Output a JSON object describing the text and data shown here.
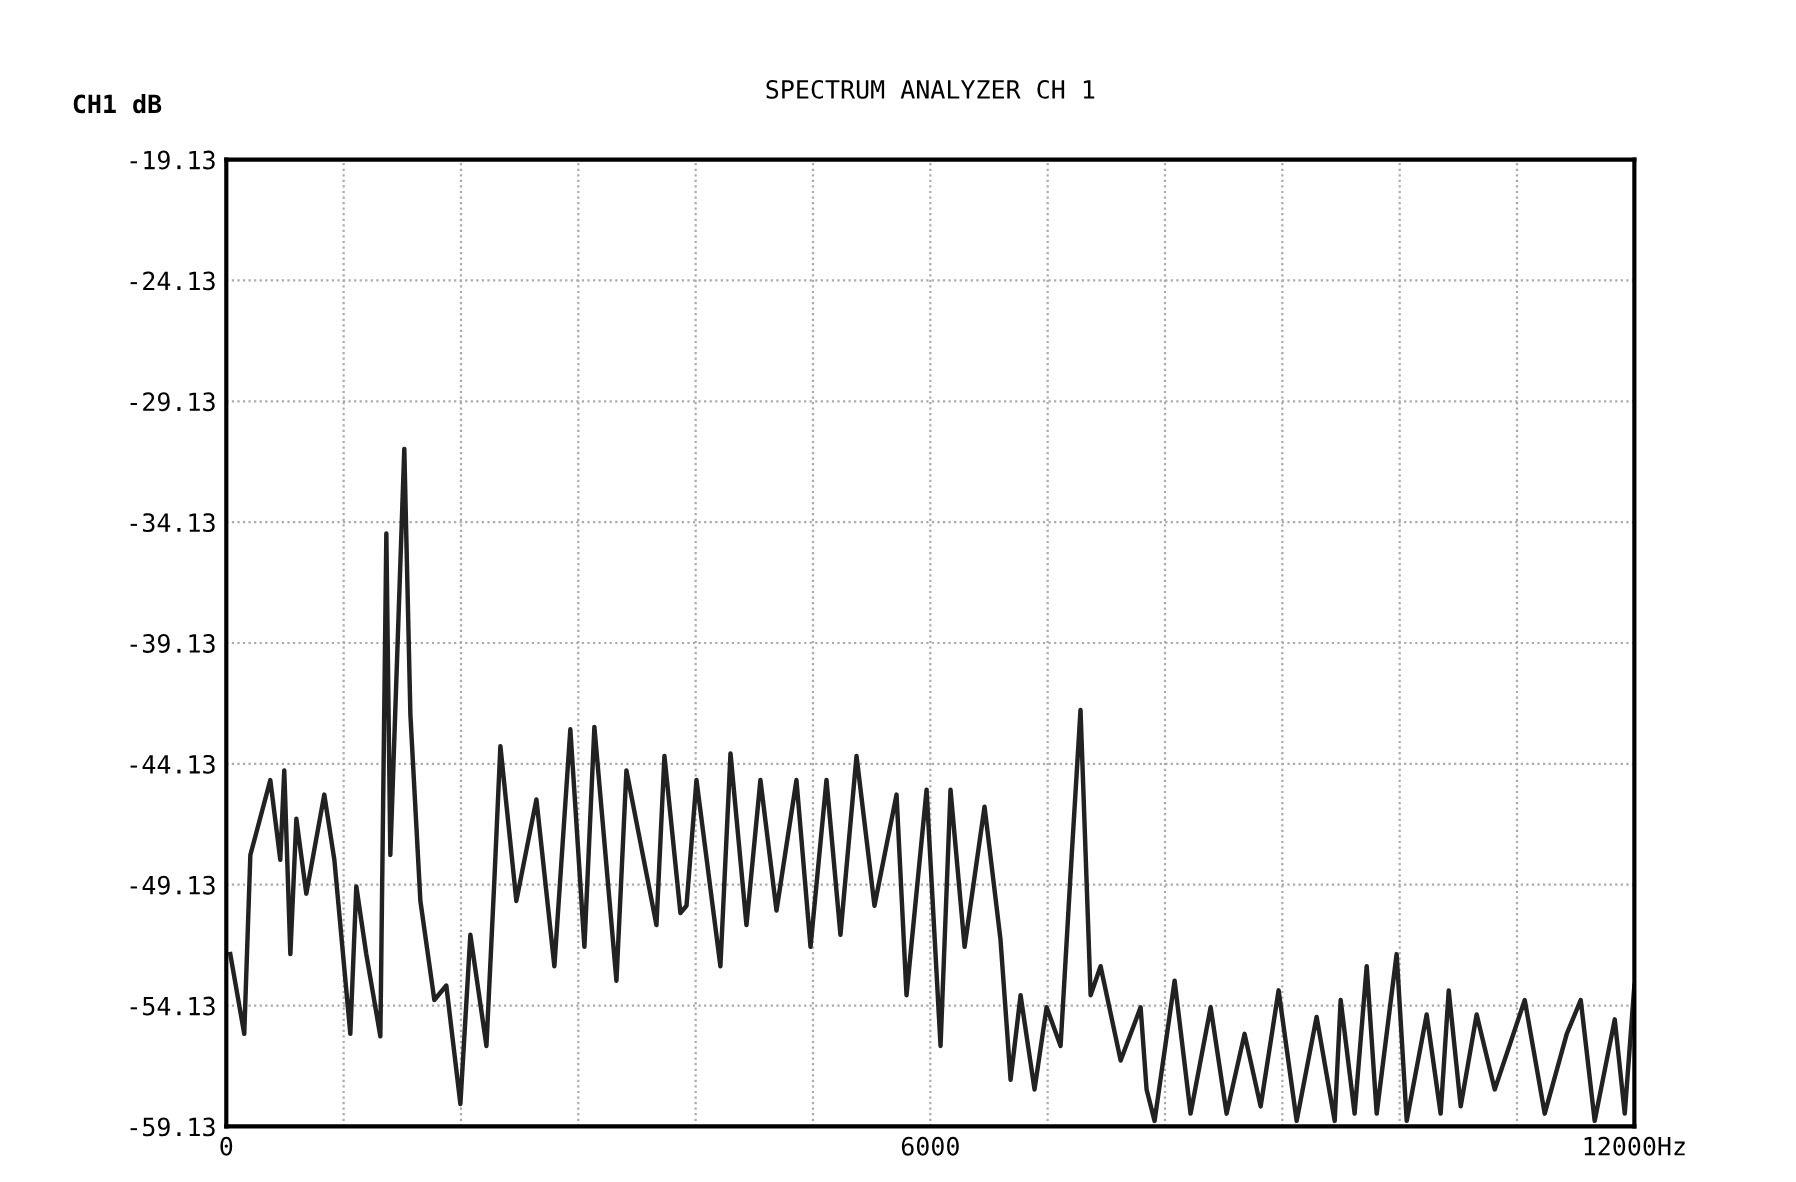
{
  "chart_data": {
    "type": "line",
    "title": "SPECTRUM ANALYZER CH 1",
    "ylabel": "CH1 dB",
    "x": [
      34,
      153,
      205,
      375,
      460,
      494,
      546,
      597,
      682,
      835,
      921,
      1057,
      1108,
      1193,
      1313,
      1364,
      1398,
      1517,
      1569,
      1654,
      1773,
      1875,
      1995,
      2080,
      2217,
      2285,
      2336,
      2472,
      2643,
      2796,
      2932,
      3052,
      3137,
      3325,
      3410,
      3666,
      3734,
      3870,
      3922,
      4007,
      4211,
      4297,
      4433,
      4552,
      4689,
      4859,
      4979,
      5115,
      5234,
      5371,
      5524,
      5712,
      5797,
      5968,
      6087,
      6172,
      6292,
      6462,
      6598,
      6684,
      6769,
      6888,
      6991,
      7110,
      7195,
      7280,
      7366,
      7451,
      7622,
      7792,
      7843,
      7911,
      8082,
      8218,
      8389,
      8525,
      8678,
      8815,
      8968,
      9122,
      9292,
      9446,
      9497,
      9616,
      9719,
      9804,
      9974,
      10060,
      10230,
      10349,
      10418,
      10520,
      10656,
      10810,
      11066,
      11236,
      11424,
      11543,
      11662,
      11833,
      11918,
      12000
    ],
    "series": [
      {
        "color": "#222222",
        "values": [
          -52.0,
          -55.3,
          -47.9,
          -44.8,
          -48.1,
          -44.4,
          -52.0,
          -46.4,
          -49.5,
          -45.4,
          -48.1,
          -55.3,
          -49.2,
          -52.0,
          -55.4,
          -34.6,
          -47.9,
          -31.1,
          -42.1,
          -49.8,
          -53.9,
          -53.3,
          -58.2,
          -51.2,
          -55.8,
          -48.9,
          -43.4,
          -49.8,
          -45.6,
          -52.5,
          -42.7,
          -51.7,
          -42.6,
          -53.1,
          -44.4,
          -50.8,
          -43.8,
          -50.3,
          -50.0,
          -44.8,
          -52.5,
          -43.7,
          -50.8,
          -44.8,
          -50.2,
          -44.8,
          -51.7,
          -44.8,
          -51.2,
          -43.8,
          -50.0,
          -45.4,
          -53.7,
          -45.2,
          -55.8,
          -45.2,
          -51.7,
          -45.9,
          -51.4,
          -57.2,
          -53.7,
          -57.6,
          -54.2,
          -55.8,
          -48.7,
          -41.9,
          -53.7,
          -52.5,
          -56.4,
          -54.2,
          -57.6,
          -58.9,
          -53.1,
          -58.6,
          -54.2,
          -58.6,
          -55.3,
          -58.3,
          -53.5,
          -58.9,
          -54.6,
          -58.9,
          -53.9,
          -58.6,
          -52.5,
          -58.6,
          -52.0,
          -58.9,
          -54.5,
          -58.6,
          -53.5,
          -58.3,
          -54.5,
          -57.6,
          -53.9,
          -58.6,
          -55.3,
          -53.9,
          -58.9,
          -54.7,
          -58.6,
          -53.3
        ]
      }
    ],
    "xlim": [
      0,
      12000
    ],
    "xticks": [
      0,
      {
        "value": 1000,
        "label": null
      },
      {
        "value": 2000,
        "label": null
      },
      {
        "value": 3000,
        "label": null
      },
      {
        "value": 4000,
        "label": null
      },
      {
        "value": 5000,
        "label": null
      },
      6000,
      {
        "value": 7000,
        "label": null
      },
      {
        "value": 8000,
        "label": null
      },
      {
        "value": 9000,
        "label": null
      },
      {
        "value": 10000,
        "label": null
      },
      {
        "value": 11000,
        "label": null
      },
      {
        "value": 12000,
        "label": "12000Hz"
      }
    ],
    "ylim": [
      -59.13,
      -19.13
    ],
    "yticks": [
      -59.13,
      -54.13,
      -49.13,
      -44.13,
      -39.13,
      -34.13,
      -29.13,
      -24.13,
      -19.13
    ],
    "grid": true,
    "line_style": "solid",
    "marker": "none"
  }
}
